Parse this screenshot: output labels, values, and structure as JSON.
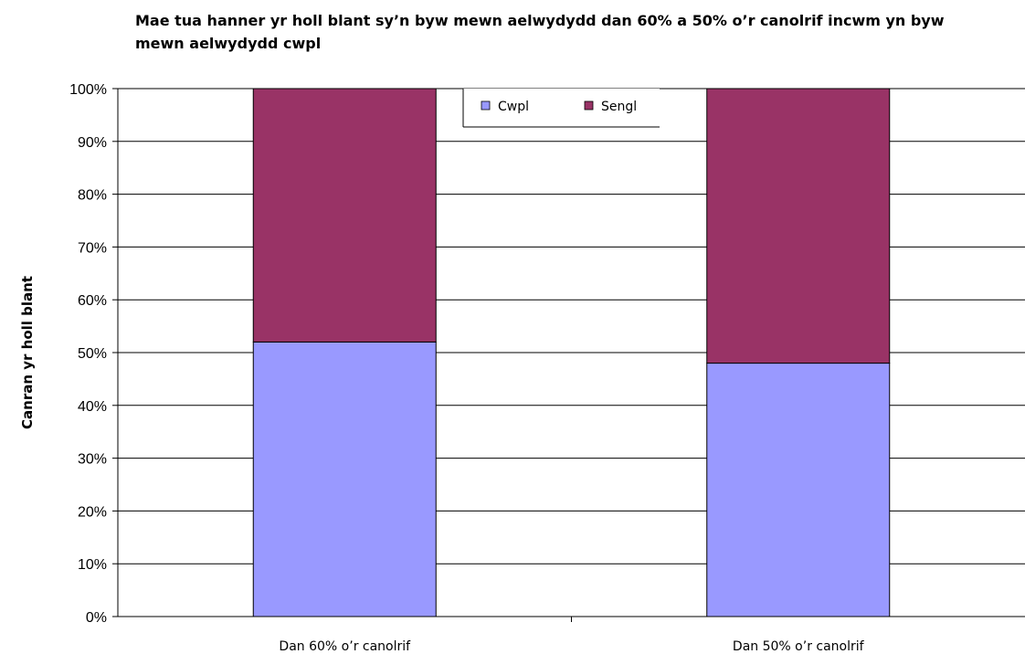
{
  "chart_data": {
    "type": "bar",
    "stacked": true,
    "title": "Mae tua hanner yr holl blant sy’n byw mewn aelwydydd dan 60% a 50% o’r canolrif incwm yn byw mewn aelwydydd cwpl",
    "xlabel": "",
    "ylabel": "Canran yr holl blant",
    "categories": [
      "Dan 60% o’r canolrif",
      "Dan 50% o’r canolrif"
    ],
    "series": [
      {
        "name": "Cwpl",
        "values": [
          52,
          48
        ],
        "color": "#9999ff"
      },
      {
        "name": "Sengl",
        "values": [
          48,
          52
        ],
        "color": "#993366"
      }
    ],
    "ylim": [
      0,
      100
    ],
    "yticks": [
      "0%",
      "10%",
      "20%",
      "30%",
      "40%",
      "50%",
      "60%",
      "70%",
      "80%",
      "90%",
      "100%"
    ],
    "grid": true,
    "legend": "top-center"
  }
}
